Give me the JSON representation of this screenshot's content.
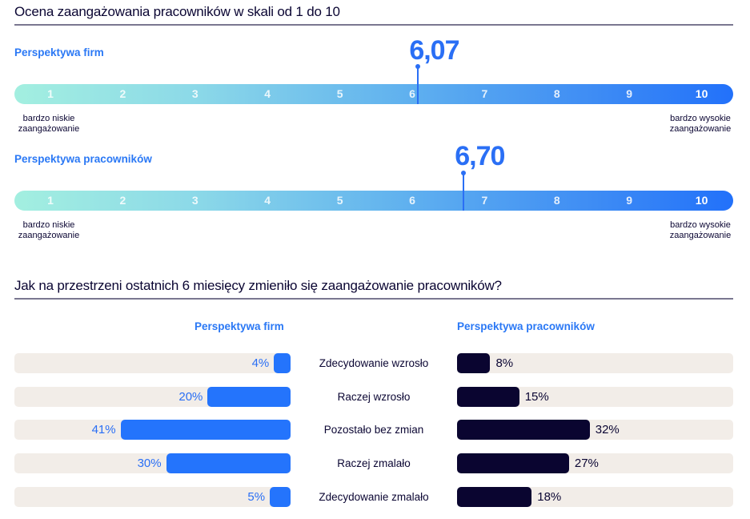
{
  "chart_data": [
    {
      "type": "scale",
      "title": "Ocena zaangażowania pracowników w skali od 1 do 10",
      "scale_min": 1,
      "scale_max": 10,
      "ticks": [
        "1",
        "2",
        "3",
        "4",
        "5",
        "6",
        "7",
        "8",
        "9",
        "10"
      ],
      "low_label": [
        "bardzo niskie",
        "zaangażowanie"
      ],
      "high_label": [
        "bardzo wysokie",
        "zaangażowanie"
      ],
      "series": [
        {
          "name": "Perspektywa firm",
          "value": 6.07,
          "value_label": "6,07"
        },
        {
          "name": "Perspektywa pracowników",
          "value": 6.7,
          "value_label": "6,70"
        }
      ]
    },
    {
      "type": "bar",
      "orientation": "horizontal-butterfly",
      "title": "Jak na przestrzeni ostatnich 6 miesięcy zmieniło się zaangażowanie pracowników?",
      "categories": [
        "Zdecydowanie wzrosło",
        "Raczej wzrosło",
        "Pozostało bez zmian",
        "Raczej zmalało",
        "Zdecydowanie zmalało"
      ],
      "xlim": [
        0,
        100
      ],
      "series": [
        {
          "name": "Perspektywa firm",
          "values": [
            4,
            20,
            41,
            30,
            5
          ],
          "labels": [
            "4%",
            "20%",
            "41%",
            "30%",
            "5%"
          ],
          "color": "#2474fc"
        },
        {
          "name": "Perspektywa pracowników",
          "values": [
            8,
            15,
            32,
            27,
            18
          ],
          "labels": [
            "8%",
            "15%",
            "32%",
            "27%",
            "18%"
          ],
          "color": "#0a0530"
        }
      ]
    }
  ],
  "colors": {
    "accent_blue": "#2a78f5",
    "dark_navy": "#0a0530",
    "track": "#f2ede8",
    "gradient_start": "#a3efe0",
    "gradient_end": "#2271fa"
  }
}
